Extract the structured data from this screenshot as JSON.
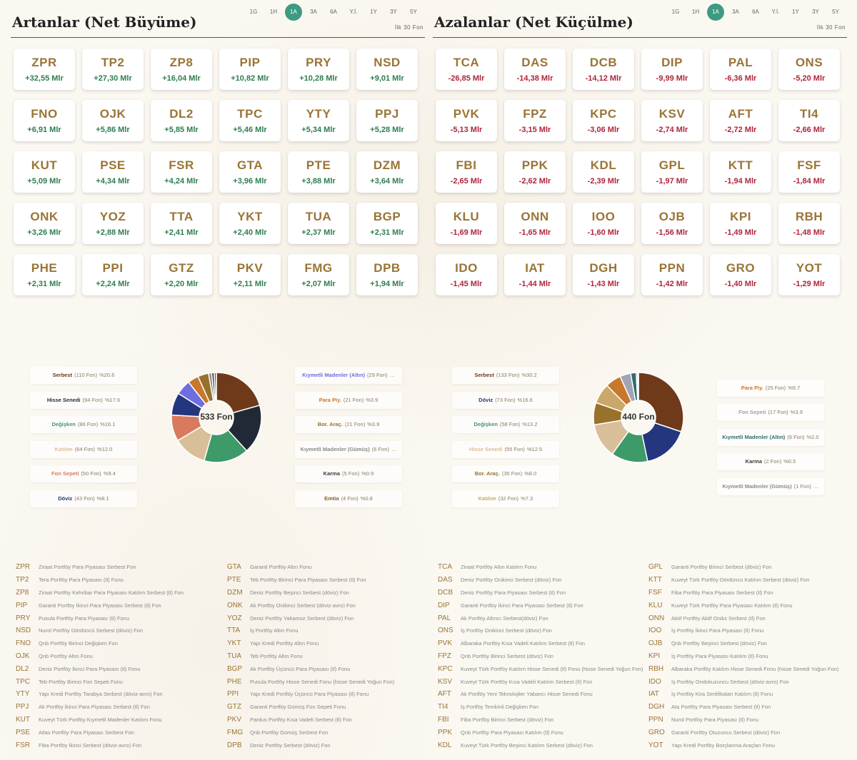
{
  "periods": [
    "1G",
    "1H",
    "1A",
    "3A",
    "6A",
    "Y.İ.",
    "1Y",
    "3Y",
    "5Y"
  ],
  "active_period": "1A",
  "first_label": "İlk 30 Fon",
  "gainers": {
    "title": "Artanlar (Net Büyüme)",
    "cards": [
      {
        "code": "ZPR",
        "value": "+32,55 Mlr"
      },
      {
        "code": "TP2",
        "value": "+27,30 Mlr"
      },
      {
        "code": "ZP8",
        "value": "+16,04 Mlr"
      },
      {
        "code": "PIP",
        "value": "+10,82 Mlr"
      },
      {
        "code": "PRY",
        "value": "+10,28 Mlr"
      },
      {
        "code": "NSD",
        "value": "+9,01 Mlr"
      },
      {
        "code": "FNO",
        "value": "+6,91 Mlr"
      },
      {
        "code": "OJK",
        "value": "+5,86 Mlr"
      },
      {
        "code": "DL2",
        "value": "+5,85 Mlr"
      },
      {
        "code": "TPC",
        "value": "+5,46 Mlr"
      },
      {
        "code": "YTY",
        "value": "+5,34 Mlr"
      },
      {
        "code": "PPJ",
        "value": "+5,28 Mlr"
      },
      {
        "code": "KUT",
        "value": "+5,09 Mlr"
      },
      {
        "code": "PSE",
        "value": "+4,34 Mlr"
      },
      {
        "code": "FSR",
        "value": "+4,24 Mlr"
      },
      {
        "code": "GTA",
        "value": "+3,96 Mlr"
      },
      {
        "code": "PTE",
        "value": "+3,88 Mlr"
      },
      {
        "code": "DZM",
        "value": "+3,64 Mlr"
      },
      {
        "code": "ONK",
        "value": "+3,26 Mlr"
      },
      {
        "code": "YOZ",
        "value": "+2,88 Mlr"
      },
      {
        "code": "TTA",
        "value": "+2,41 Mlr"
      },
      {
        "code": "YKT",
        "value": "+2,40 Mlr"
      },
      {
        "code": "TUA",
        "value": "+2,37 Mlr"
      },
      {
        "code": "BGP",
        "value": "+2,31 Mlr"
      },
      {
        "code": "PHE",
        "value": "+2,31 Mlr"
      },
      {
        "code": "PPI",
        "value": "+2,24 Mlr"
      },
      {
        "code": "GTZ",
        "value": "+2,20 Mlr"
      },
      {
        "code": "PKV",
        "value": "+2,11 Mlr"
      },
      {
        "code": "FMG",
        "value": "+2,07 Mlr"
      },
      {
        "code": "DPB",
        "value": "+1,94 Mlr"
      }
    ],
    "pie_total": "533 Fon",
    "categories": [
      {
        "name": "Serbest",
        "count": "(110 Fon)",
        "pct": "%20.6",
        "value": 20.6,
        "color": "#6e3a1a"
      },
      {
        "name": "Hisse Senedi",
        "count": "(94 Fon)",
        "pct": "%17.6",
        "value": 17.6,
        "color": "#1f2a36"
      },
      {
        "name": "Değişken",
        "count": "(86 Fon)",
        "pct": "%16.1",
        "value": 16.1,
        "color": "#3e9a68"
      },
      {
        "name": "Katılım",
        "count": "(64 Fon)",
        "pct": "%12.0",
        "value": 12.0,
        "color": "#d8bf9a"
      },
      {
        "name": "Fon Sepeti",
        "count": "(50 Fon)",
        "pct": "%9.4",
        "value": 9.4,
        "color": "#d97a5e"
      },
      {
        "name": "Döviz",
        "count": "(43 Fon)",
        "pct": "%8.1",
        "value": 8.1,
        "color": "#24367e"
      },
      {
        "name": "Kıymetli Madenler (Altın)",
        "count": "(29 Fon)",
        "pct": "…",
        "value": 5.4,
        "color": "#6f6ee0"
      },
      {
        "name": "Para Piy.",
        "count": "(21 Fon)",
        "pct": "%3.9",
        "value": 3.9,
        "color": "#c7782c"
      },
      {
        "name": "Bor. Araç.",
        "count": "(21 Fon)",
        "pct": "%3.9",
        "value": 3.9,
        "color": "#98712b"
      },
      {
        "name": "Kıymetli Madenler (Gümüş)",
        "count": "(6 Fon)",
        "pct": "…",
        "value": 1.1,
        "color": "#8a8a8a"
      },
      {
        "name": "Karma",
        "count": "(5 Fon)",
        "pct": "%0.9",
        "value": 0.9,
        "color": "#3a3a3a"
      },
      {
        "name": "Emtia",
        "count": "(4 Fon)",
        "pct": "%0.8",
        "value": 0.8,
        "color": "#8a5c2a"
      }
    ],
    "funds_col1": [
      {
        "code": "ZPR",
        "name": "Ziraat Portföy Para Piyasası Serbest Fon"
      },
      {
        "code": "TP2",
        "name": "Tera Portföy Para Piyasası (tl) Fonu"
      },
      {
        "code": "ZP8",
        "name": "Ziraat Portföy Kehribar Para Piyasası Katılım Serbest (tl) Fon"
      },
      {
        "code": "PIP",
        "name": "Garanti Portföy İkinci Para Piyasası Serbest (tl) Fon"
      },
      {
        "code": "PRY",
        "name": "Pusula Portföy Para Piyasası (tl) Fonu"
      },
      {
        "code": "NSD",
        "name": "Nurol Portföy Dördüncü Serbest (döviz) Fon"
      },
      {
        "code": "FNO",
        "name": "Qnb Portföy Birinci Değişken Fon"
      },
      {
        "code": "OJK",
        "name": "Qnb Portföy Altın Fonu"
      },
      {
        "code": "DL2",
        "name": "Deniz Portföy İkinci Para Piyasası (tl) Fonu"
      },
      {
        "code": "TPC",
        "name": "Teb Portföy Birinci Fon Sepeti Fonu"
      },
      {
        "code": "YTY",
        "name": "Yapı Kredi Portföy Tarabya Serbest (döviz-avro) Fon"
      },
      {
        "code": "PPJ",
        "name": "Ak Portföy İkinci Para Piyasası Serbest (tl) Fon"
      },
      {
        "code": "KUT",
        "name": "Kuveyt Türk Portföy Kıymetli Madenler Katılım Fonu"
      },
      {
        "code": "PSE",
        "name": "Atlas Portföy Para Piyasası Serbest Fon"
      },
      {
        "code": "FSR",
        "name": "Fiba Portföy İkinci Serbest (döviz-avro) Fon"
      }
    ],
    "funds_col2": [
      {
        "code": "GTA",
        "name": "Garanti Portföy Altın Fonu"
      },
      {
        "code": "PTE",
        "name": "Teb Portföy Birinci Para Piyasası Serbest (tl) Fon"
      },
      {
        "code": "DZM",
        "name": "Deniz Portföy Beşinci Serbest (döviz) Fon"
      },
      {
        "code": "ONK",
        "name": "Ak Portföy Onikinci Serbest (döviz-avro) Fon"
      },
      {
        "code": "YOZ",
        "name": "Deniz Portföy Yakamoz Serbest (döviz) Fon"
      },
      {
        "code": "TTA",
        "name": "İş Portföy Altın Fonu"
      },
      {
        "code": "YKT",
        "name": "Yapı Kredi Portföy Altın Fonu"
      },
      {
        "code": "TUA",
        "name": "Teb Portföy Altın Fonu"
      },
      {
        "code": "BGP",
        "name": "Ak Portföy Üçüncü Para Piyasası (tl) Fonu"
      },
      {
        "code": "PHE",
        "name": "Pusula Portföy Hisse Senedi Fonu (hisse Senedi Yoğun Fon)"
      },
      {
        "code": "PPI",
        "name": "Yapı Kredi Portföy Üçüncü Para Piyasası (tl) Fonu"
      },
      {
        "code": "GTZ",
        "name": "Garanti Portföy Gümüş Fon Sepeti Fonu"
      },
      {
        "code": "PKV",
        "name": "Pardus Portföy Kısa Vadeli Serbest (tl) Fon"
      },
      {
        "code": "FMG",
        "name": "Qnb Portföy Gümüş Serbest Fon"
      },
      {
        "code": "DPB",
        "name": "Deniz Portföy Serbest (döviz) Fon"
      }
    ]
  },
  "losers": {
    "title": "Azalanlar (Net Küçülme)",
    "cards": [
      {
        "code": "TCA",
        "value": "-26,85 Mlr"
      },
      {
        "code": "DAS",
        "value": "-14,38 Mlr"
      },
      {
        "code": "DCB",
        "value": "-14,12 Mlr"
      },
      {
        "code": "DIP",
        "value": "-9,99 Mlr"
      },
      {
        "code": "PAL",
        "value": "-6,36 Mlr"
      },
      {
        "code": "ONS",
        "value": "-5,20 Mlr"
      },
      {
        "code": "PVK",
        "value": "-5,13 Mlr"
      },
      {
        "code": "FPZ",
        "value": "-3,15 Mlr"
      },
      {
        "code": "KPC",
        "value": "-3,06 Mlr"
      },
      {
        "code": "KSV",
        "value": "-2,74 Mlr"
      },
      {
        "code": "AFT",
        "value": "-2,72 Mlr"
      },
      {
        "code": "TI4",
        "value": "-2,66 Mlr"
      },
      {
        "code": "FBI",
        "value": "-2,65 Mlr"
      },
      {
        "code": "PPK",
        "value": "-2,62 Mlr"
      },
      {
        "code": "KDL",
        "value": "-2,39 Mlr"
      },
      {
        "code": "GPL",
        "value": "-1,97 Mlr"
      },
      {
        "code": "KTT",
        "value": "-1,94 Mlr"
      },
      {
        "code": "FSF",
        "value": "-1,84 Mlr"
      },
      {
        "code": "KLU",
        "value": "-1,69 Mlr"
      },
      {
        "code": "ONN",
        "value": "-1,65 Mlr"
      },
      {
        "code": "IOO",
        "value": "-1,60 Mlr"
      },
      {
        "code": "OJB",
        "value": "-1,56 Mlr"
      },
      {
        "code": "KPI",
        "value": "-1,49 Mlr"
      },
      {
        "code": "RBH",
        "value": "-1,48 Mlr"
      },
      {
        "code": "IDO",
        "value": "-1,45 Mlr"
      },
      {
        "code": "IAT",
        "value": "-1,44 Mlr"
      },
      {
        "code": "DGH",
        "value": "-1,43 Mlr"
      },
      {
        "code": "PPN",
        "value": "-1,42 Mlr"
      },
      {
        "code": "GRO",
        "value": "-1,40 Mlr"
      },
      {
        "code": "YOT",
        "value": "-1,29 Mlr"
      }
    ],
    "pie_total": "440 Fon",
    "categories": [
      {
        "name": "Serbest",
        "count": "(133 Fon)",
        "pct": "%30.2",
        "value": 30.2,
        "color": "#6e3a1a"
      },
      {
        "name": "Döviz",
        "count": "(73 Fon)",
        "pct": "%16.6",
        "value": 16.6,
        "color": "#24367e"
      },
      {
        "name": "Değişken",
        "count": "(58 Fon)",
        "pct": "%13.2",
        "value": 13.2,
        "color": "#3e9a68"
      },
      {
        "name": "Hisse Senedi",
        "count": "(55 Fon)",
        "pct": "%12.5",
        "value": 12.5,
        "color": "#d8bf9a"
      },
      {
        "name": "Bor. Araç.",
        "count": "(35 Fon)",
        "pct": "%8.0",
        "value": 8.0,
        "color": "#98712b"
      },
      {
        "name": "Katılım",
        "count": "(32 Fon)",
        "pct": "%7.3",
        "value": 7.3,
        "color": "#c9a86a"
      },
      {
        "name": "Para Piy.",
        "count": "(25 Fon)",
        "pct": "%5.7",
        "value": 5.7,
        "color": "#c7782c"
      },
      {
        "name": "Fon Sepeti",
        "count": "(17 Fon)",
        "pct": "%3.9",
        "value": 3.9,
        "color": "#a0a4b4"
      },
      {
        "name": "Kıymetli Madenler (Altın)",
        "count": "(9 Fon)",
        "pct": "%2.0",
        "value": 2.0,
        "color": "#2f6e6a"
      },
      {
        "name": "Karma",
        "count": "(2 Fon)",
        "pct": "%0.5",
        "value": 0.5,
        "color": "#3a3a3a"
      },
      {
        "name": "Kıymetli Madenler (Gümüş)",
        "count": "(1 Fon)",
        "pct": "…",
        "value": 0.3,
        "color": "#8a8a8a"
      }
    ],
    "funds_col1": [
      {
        "code": "TCA",
        "name": "Ziraat Portföy Altın Katılım Fonu"
      },
      {
        "code": "DAS",
        "name": "Deniz Portföy Onikinci Serbest (döviz) Fon"
      },
      {
        "code": "DCB",
        "name": "Deniz Portföy Para Piyasası Serbest (tl) Fon"
      },
      {
        "code": "DIP",
        "name": "Garanti Portföy İkinci Para Piyasası Serbest (tl) Fon"
      },
      {
        "code": "PAL",
        "name": "Ak Portföy Altıncı Serbest(döviz) Fon"
      },
      {
        "code": "ONS",
        "name": "İş Portföy Onikinci Serbest (döviz) Fon"
      },
      {
        "code": "PVK",
        "name": "Albaraka Portföy Kısa Vadeli Katılım Serbest (tl) Fon"
      },
      {
        "code": "FPZ",
        "name": "Qnb Portföy Birinci Serbest (döviz) Fon"
      },
      {
        "code": "KPC",
        "name": "Kuveyt Türk Portföy Katılım Hisse Senedi (tl) Fonu (hisse Senedi Yoğun Fon)"
      },
      {
        "code": "KSV",
        "name": "Kuveyt Türk Portföy Kısa Vadeli Katılım Serbest (tl) Fon"
      },
      {
        "code": "AFT",
        "name": "Ak Portföy Yeni Teknolojiler Yabancı Hisse Senedi Fonu"
      },
      {
        "code": "TI4",
        "name": "İş Portföy Temkinli Değişken Fon"
      },
      {
        "code": "FBI",
        "name": "Fiba Portföy Birinci Serbest (döviz) Fon"
      },
      {
        "code": "PPK",
        "name": "Qnb Portföy Para Piyasası Katılım (tl) Fonu"
      },
      {
        "code": "KDL",
        "name": "Kuveyt Türk Portföy Beşinci Katılım Serbest (döviz) Fon"
      }
    ],
    "funds_col2": [
      {
        "code": "GPL",
        "name": "Garanti Portföy Birinci Serbest (döviz) Fon"
      },
      {
        "code": "KTT",
        "name": "Kuveyt Türk Portföy Dördüncü Katılım Serbest (döviz) Fon"
      },
      {
        "code": "FSF",
        "name": "Fiba Portföy Para Piyasası Serbest (tl) Fon"
      },
      {
        "code": "KLU",
        "name": "Kuveyt Türk Portföy Para Piyasası Katılım (tl) Fonu"
      },
      {
        "code": "ONN",
        "name": "Aktif Portföy Aktif Oniks Serbest (tl) Fon"
      },
      {
        "code": "IOO",
        "name": "İş Portföy İkinci Para Piyasası (tl) Fonu"
      },
      {
        "code": "OJB",
        "name": "Qnb Portföy Beşinci Serbest (döviz) Fon"
      },
      {
        "code": "KPI",
        "name": "İş Portföy Para Piyasası Katılım (tl) Fonu"
      },
      {
        "code": "RBH",
        "name": "Albaraka Portföy Katılım Hisse Senedi Fonu (hisse Senedi Yoğun Fon)"
      },
      {
        "code": "IDO",
        "name": "İş Portföy Ondokuzuncu Serbest (döviz-avro) Fon"
      },
      {
        "code": "IAT",
        "name": "İş Portföy Kira Sertifikaları Katılım (tl) Fonu"
      },
      {
        "code": "DGH",
        "name": "Ata Portföy Para Piyasası Serbest (tl) Fon"
      },
      {
        "code": "PPN",
        "name": "Nurol Portföy Para Piyasası (tl) Fonu"
      },
      {
        "code": "GRO",
        "name": "Garanti Portföy Otuzuncu Serbest (döviz) Fon"
      },
      {
        "code": "YOT",
        "name": "Yapı Kredi Portföy Borçlanma Araçları Fonu"
      }
    ]
  }
}
